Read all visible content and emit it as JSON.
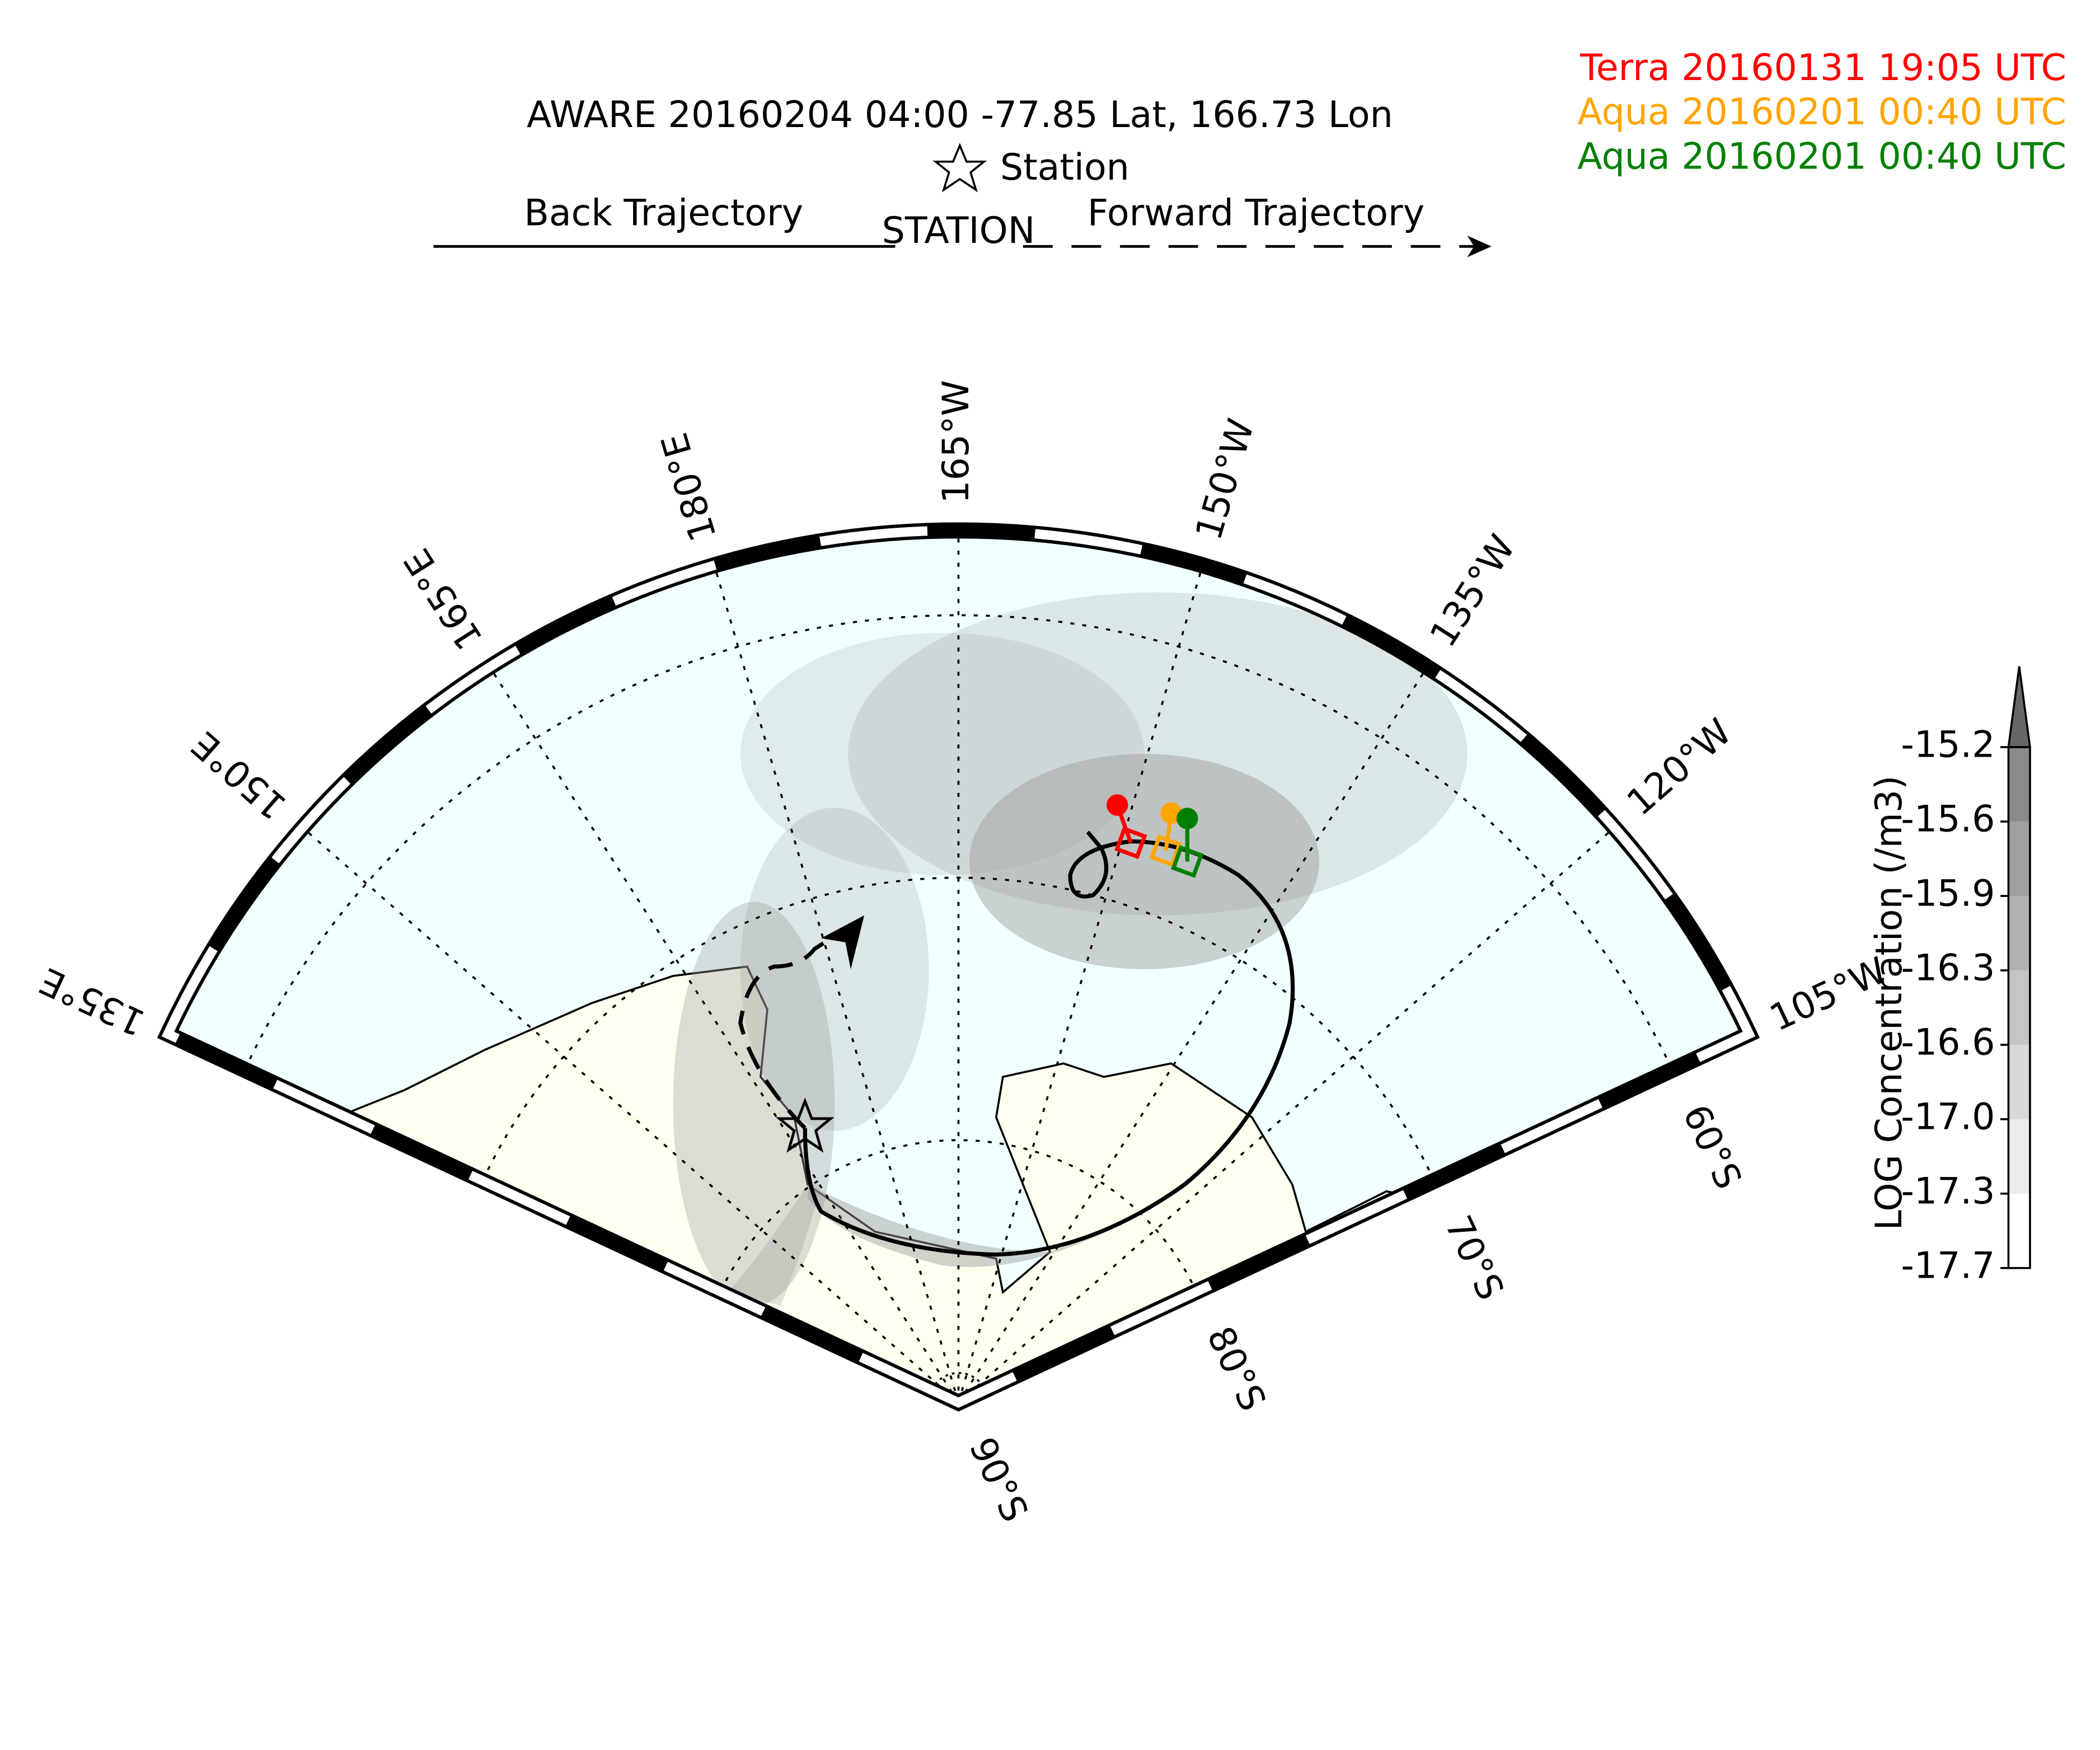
{
  "title": "AWARE 20160204 04:00  -77.85 Lat,  166.73 Lon",
  "station_label": "Station",
  "back_label": "Back Trajectory",
  "station_text": "STATION",
  "forward_label": "Forward Trajectory",
  "satellites": [
    {
      "label": "Terra 20160131 19:05 UTC",
      "color": "#ff0000"
    },
    {
      "label": "Aqua 20160201 00:40 UTC",
      "color": "#ffa500"
    },
    {
      "label": "Aqua 20160201 00:40 UTC",
      "color": "#008000"
    }
  ],
  "map": {
    "meridian_labels": [
      "135°E",
      "150°E",
      "165°E",
      "180°E",
      "165°W",
      "150°W",
      "135°W",
      "120°W",
      "105°W"
    ],
    "parallel_labels": [
      "60°S",
      "70°S",
      "80°S",
      "90°S"
    ]
  },
  "colorbar": {
    "label": "LOG Concentration (/m3)",
    "ticks": [
      {
        "value": -17.7,
        "label": "-17.7"
      },
      {
        "value": -17.3,
        "label": "-17.3"
      },
      {
        "value": -17,
        "label": "-17.0"
      },
      {
        "value": -16.6,
        "label": "-16.6"
      },
      {
        "value": -16.3,
        "label": "-16.3"
      },
      {
        "value": -15.9,
        "label": "-15.9"
      },
      {
        "value": -15.6,
        "label": "-15.6"
      },
      {
        "value": -15.2,
        "label": "-15.2"
      }
    ]
  }
}
